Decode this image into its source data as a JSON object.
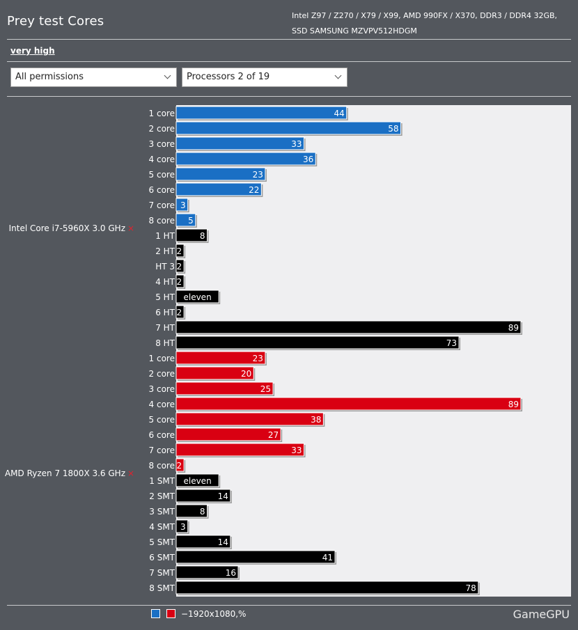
{
  "header": {
    "title": "Prey test Cores",
    "config_line1": "Intel Z97 / Z270 / X79 / X99, AMD 990FX / X370, DDR3 / DDR4 32GB,",
    "config_line2": "SSD SAMSUNG MZVPV512HDGM"
  },
  "preset_link": "very high",
  "filters": {
    "permissions": "All permissions",
    "processors": "Processors 2 of 19"
  },
  "legend": {
    "label": "−1920x1080,%",
    "swatch_colors": [
      "#1a6fc4",
      "#d90012"
    ]
  },
  "brand": "GameGPU",
  "colors": {
    "intel_core": "#1a6fc4",
    "amd_core": "#d90012",
    "thread": "#000000",
    "plot_bg": "#efeff1",
    "remove_x": "#e0232e"
  },
  "chart_data": {
    "type": "bar",
    "orientation": "horizontal",
    "xlim": [
      0,
      100
    ],
    "series": [
      {
        "name": "Intel Core i7-5960X 3.0 GHz",
        "remove_mark": "×",
        "categories": [
          "1 core",
          "2 core",
          "3 core",
          "4 core",
          "5 core",
          "6 core",
          "7 core",
          "8 core",
          "1 HT",
          "2 HT",
          "HT 3",
          "4 HT",
          "5 HT",
          "6 HT",
          "7 HT",
          "8 HT"
        ],
        "values": [
          44,
          58,
          33,
          36,
          23,
          22,
          3,
          5,
          8,
          2,
          2,
          2,
          11,
          2,
          89,
          73
        ],
        "value_labels": [
          "44",
          "58",
          "33",
          "36",
          "23",
          "22",
          "3",
          "5",
          "8",
          "2",
          "2",
          "2",
          "eleven",
          "2",
          "89",
          "73"
        ],
        "kinds": [
          "core",
          "core",
          "core",
          "core",
          "core",
          "core",
          "core",
          "core",
          "thread",
          "thread",
          "thread",
          "thread",
          "thread",
          "thread",
          "thread",
          "thread"
        ]
      },
      {
        "name": "AMD Ryzen 7 1800X 3.6 GHz",
        "remove_mark": "×",
        "categories": [
          "1 core",
          "2 core",
          "3 core",
          "4 core",
          "5 core",
          "6 core",
          "7 core",
          "8 core",
          "1 SMT",
          "2 SMT",
          "3 SMT",
          "4 SMT",
          "5 SMT",
          "6 SMT",
          "7 SMT",
          "8 SMT"
        ],
        "values": [
          23,
          20,
          25,
          89,
          38,
          27,
          33,
          2,
          11,
          14,
          8,
          3,
          14,
          41,
          16,
          78
        ],
        "value_labels": [
          "23",
          "20",
          "25",
          "89",
          "38",
          "27",
          "33",
          "2",
          "eleven",
          "14",
          "8",
          "3",
          "14",
          "41",
          "16",
          "78"
        ],
        "kinds": [
          "core",
          "core",
          "core",
          "core",
          "core",
          "core",
          "core",
          "core",
          "thread",
          "thread",
          "thread",
          "thread",
          "thread",
          "thread",
          "thread",
          "thread"
        ]
      }
    ]
  }
}
